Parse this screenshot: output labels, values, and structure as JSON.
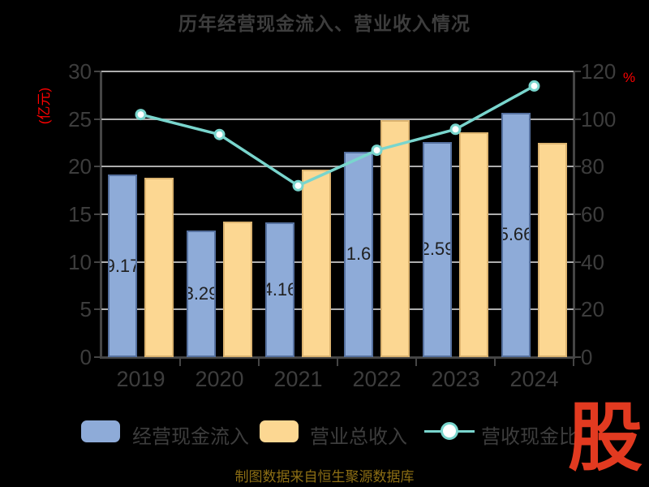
{
  "title": "历年经营现金流入、营业收入情况",
  "left_axis": {
    "unit": "(亿元)",
    "ticks": [
      "30",
      "25",
      "20",
      "15",
      "10",
      "5",
      "0"
    ]
  },
  "right_axis": {
    "unit": "%",
    "ticks": [
      "120",
      "100",
      "80",
      "60",
      "40",
      "20",
      "0"
    ]
  },
  "chart_data": {
    "type": "bar+line",
    "categories": [
      "2019",
      "2020",
      "2021",
      "2022",
      "2023",
      "2024"
    ],
    "left_ylim": [
      0,
      30
    ],
    "right_ylim": [
      0,
      120
    ],
    "grid": "on",
    "legend_position": "bottom",
    "series": [
      {
        "name": "经营现金流入",
        "type": "bar",
        "axis": "left",
        "values": [
          19.17,
          13.29,
          14.16,
          21.6,
          22.59,
          25.66
        ],
        "labels_visible": [
          "9.17",
          "3.29",
          "4.16",
          "1.6",
          "2.59",
          "5.66"
        ]
      },
      {
        "name": "营业总收入",
        "type": "bar",
        "axis": "left",
        "values": [
          18.8,
          14.2,
          19.7,
          24.9,
          23.6,
          22.5
        ]
      },
      {
        "name": "营收现金比",
        "type": "line",
        "axis": "right",
        "values": [
          101.9,
          93.5,
          72.0,
          86.9,
          95.7,
          113.9
        ]
      }
    ]
  },
  "legend": {
    "items": [
      {
        "label": "经营现金流入",
        "swatch": "blue-bar"
      },
      {
        "label": "营业总收入",
        "swatch": "orange-bar"
      },
      {
        "label": "营收现金比",
        "swatch": "teal-line-marker"
      }
    ]
  },
  "footer": "制图数据来自恒生聚源数据库",
  "logo_text": "股",
  "colors": {
    "background": "#000000",
    "bar_blue": "#8EABD8",
    "bar_orange": "#FCD792",
    "line_teal": "#79D5CD",
    "marker_fill": "#FFFFFF",
    "axis_unit_red": "#FF0000",
    "text_gray": "#3D3D3D",
    "gridline_gray": "#ADADAD",
    "axis_gray": "#454545",
    "bar_label_dark": "#1F1F1F",
    "footer_gold": "#8C6E14",
    "logo_red": "#E23A20"
  }
}
